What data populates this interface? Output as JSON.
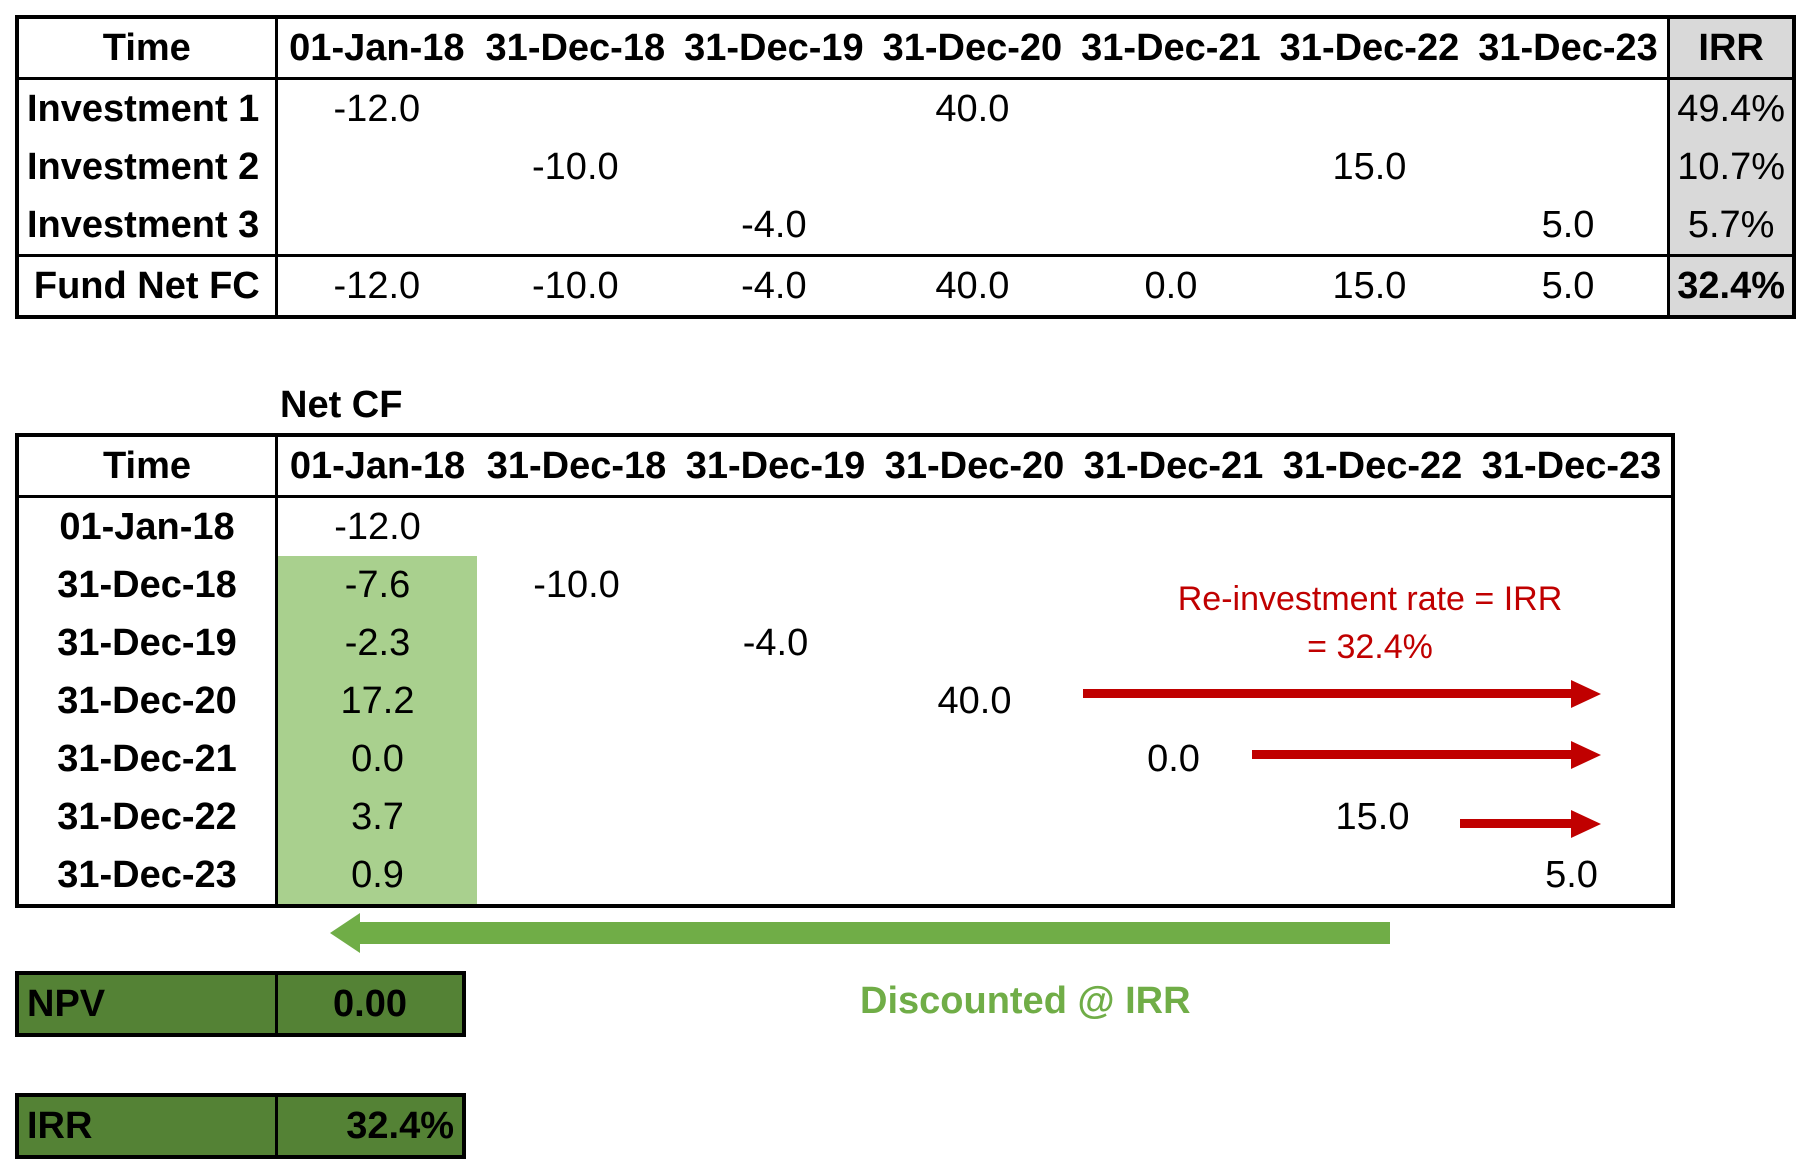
{
  "table1": {
    "header": [
      "Time",
      "01-Jan-18",
      "31-Dec-18",
      "31-Dec-19",
      "31-Dec-20",
      "31-Dec-21",
      "31-Dec-22",
      "31-Dec-23",
      "IRR"
    ],
    "rows": [
      {
        "label": "Investment 1",
        "values": [
          "-12.0",
          "",
          "",
          "40.0",
          "",
          "",
          ""
        ],
        "irr": "49.4%"
      },
      {
        "label": "Investment 2",
        "values": [
          "",
          "-10.0",
          "",
          "",
          "",
          "15.0",
          ""
        ],
        "irr": "10.7%"
      },
      {
        "label": "Investment 3",
        "values": [
          "",
          "",
          "-4.0",
          "",
          "",
          "",
          "5.0"
        ],
        "irr": "5.7%"
      },
      {
        "label": "Fund Net FC",
        "values": [
          "-12.0",
          "-10.0",
          "-4.0",
          "40.0",
          "0.0",
          "15.0",
          "5.0"
        ],
        "irr": "32.4%"
      }
    ]
  },
  "table2": {
    "title": "Net CF",
    "header": [
      "Time",
      "01-Jan-18",
      "31-Dec-18",
      "31-Dec-19",
      "31-Dec-20",
      "31-Dec-21",
      "31-Dec-22",
      "31-Dec-23"
    ],
    "rows": [
      {
        "label": "01-Jan-18",
        "values": [
          "-12.0",
          "",
          "",
          "",
          "",
          "",
          ""
        ]
      },
      {
        "label": "31-Dec-18",
        "values": [
          "-7.6",
          "-10.0",
          "",
          "",
          "",
          "",
          ""
        ]
      },
      {
        "label": "31-Dec-19",
        "values": [
          "-2.3",
          "",
          "-4.0",
          "",
          "",
          "",
          ""
        ]
      },
      {
        "label": "31-Dec-20",
        "values": [
          "17.2",
          "",
          "",
          "40.0",
          "",
          "",
          ""
        ]
      },
      {
        "label": "31-Dec-21",
        "values": [
          "0.0",
          "",
          "",
          "",
          "0.0",
          "",
          ""
        ]
      },
      {
        "label": "31-Dec-22",
        "values": [
          "3.7",
          "",
          "",
          "",
          "",
          "15.0",
          ""
        ]
      },
      {
        "label": "31-Dec-23",
        "values": [
          "0.9",
          "",
          "",
          "",
          "",
          "",
          "5.0"
        ]
      }
    ]
  },
  "annotations": {
    "reinvest_line1": "Re-investment rate = IRR",
    "reinvest_line2": "= 32.4%",
    "discounted": "Discounted @ IRR"
  },
  "summary": {
    "npv_label": "NPV",
    "npv_value": "0.00",
    "irr_label": "IRR",
    "irr_value": "32.4%"
  },
  "colors": {
    "green_highlight": "#a9d08e",
    "summary_green": "#548235",
    "arrow_green": "#70ad47",
    "annotation_red": "#c00000",
    "irr_column_gray": "#d9d9d9"
  }
}
